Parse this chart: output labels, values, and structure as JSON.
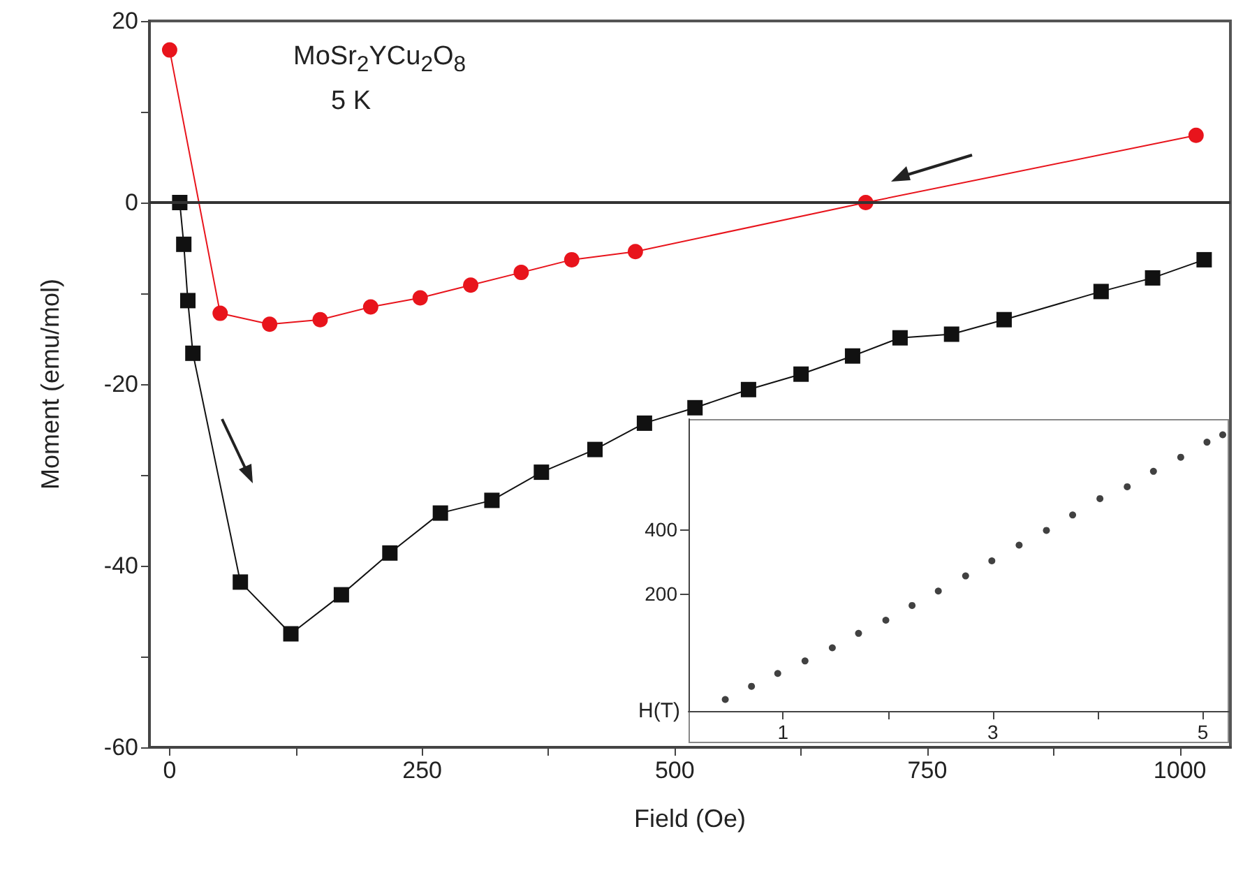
{
  "chart_data": [
    {
      "type": "line",
      "xlabel": "Field (Oe)",
      "ylabel": "Moment (emu/mol)",
      "xlim": [
        -20,
        1050
      ],
      "ylim": [
        -60,
        20
      ],
      "xticks": [
        0,
        {
          "value": 125,
          "label": null
        },
        250,
        {
          "value": 375,
          "label": null
        },
        500,
        {
          "value": 625,
          "label": null
        },
        750,
        {
          "value": 875,
          "label": null
        },
        1000
      ],
      "yticks": [
        -60,
        {
          "value": -50,
          "label": null
        },
        -40,
        {
          "value": -30,
          "label": null
        },
        -20,
        {
          "value": -10,
          "label": null
        },
        0,
        {
          "value": 10,
          "label": null
        },
        20
      ],
      "annotations": [
        "MoSr$_{2}$YCu$_{2}$O$_{8}$",
        "5 K"
      ],
      "ref_lines": [
        {
          "axis": "y",
          "value": 0,
          "color": "#333333"
        }
      ],
      "series": [
        {
          "color": "#e8141c",
          "marker": "circle",
          "x": [
            0,
            50,
            99,
            149,
            199,
            248,
            298,
            348,
            398,
            461,
            689,
            1016
          ],
          "values": [
            16.8,
            -12.2,
            -13.4,
            -12.9,
            -11.5,
            -10.5,
            -9.1,
            -7.7,
            -6.3,
            -5.4,
            0,
            7.4
          ]
        },
        {
          "color": "#111111",
          "marker": "square",
          "x": [
            10,
            14,
            18,
            23,
            70,
            120,
            170,
            218,
            268,
            319,
            368,
            421,
            470,
            520,
            573,
            625,
            676,
            723,
            774,
            826,
            922,
            973,
            1024
          ],
          "values": [
            0,
            -4.6,
            -10.8,
            -16.6,
            -41.8,
            -47.5,
            -43.2,
            -38.6,
            -34.2,
            -32.8,
            -29.7,
            -27.2,
            -24.3,
            -22.6,
            -20.6,
            -18.9,
            -16.9,
            -14.9,
            -14.5,
            -12.9,
            -9.8,
            -8.3,
            -6.3
          ]
        }
      ]
    },
    {
      "type": "scatter",
      "xlabel": "H(T)",
      "marker": "circle",
      "xlim": [
        0.1,
        5.25
      ],
      "ylim": [
        -165,
        745
      ],
      "xticks": [
        1,
        {
          "value": 2,
          "label": null
        },
        3,
        {
          "value": 4,
          "label": null
        },
        5
      ],
      "yticks": [
        200,
        400
      ],
      "series": [
        {
          "color": "#111111",
          "x": [
            0.45,
            0.7,
            0.95,
            1.21,
            1.47,
            1.72,
            1.98,
            2.23,
            2.48,
            2.74,
            2.99,
            3.25,
            3.51,
            3.76,
            4.02,
            4.28,
            4.53,
            4.79,
            5.04,
            5.19
          ],
          "values": [
            -129,
            -88,
            -48,
            -9,
            32,
            77,
            118,
            164,
            209,
            256,
            303,
            352,
            398,
            446,
            497,
            534,
            582,
            626,
            673,
            696
          ]
        }
      ]
    }
  ]
}
